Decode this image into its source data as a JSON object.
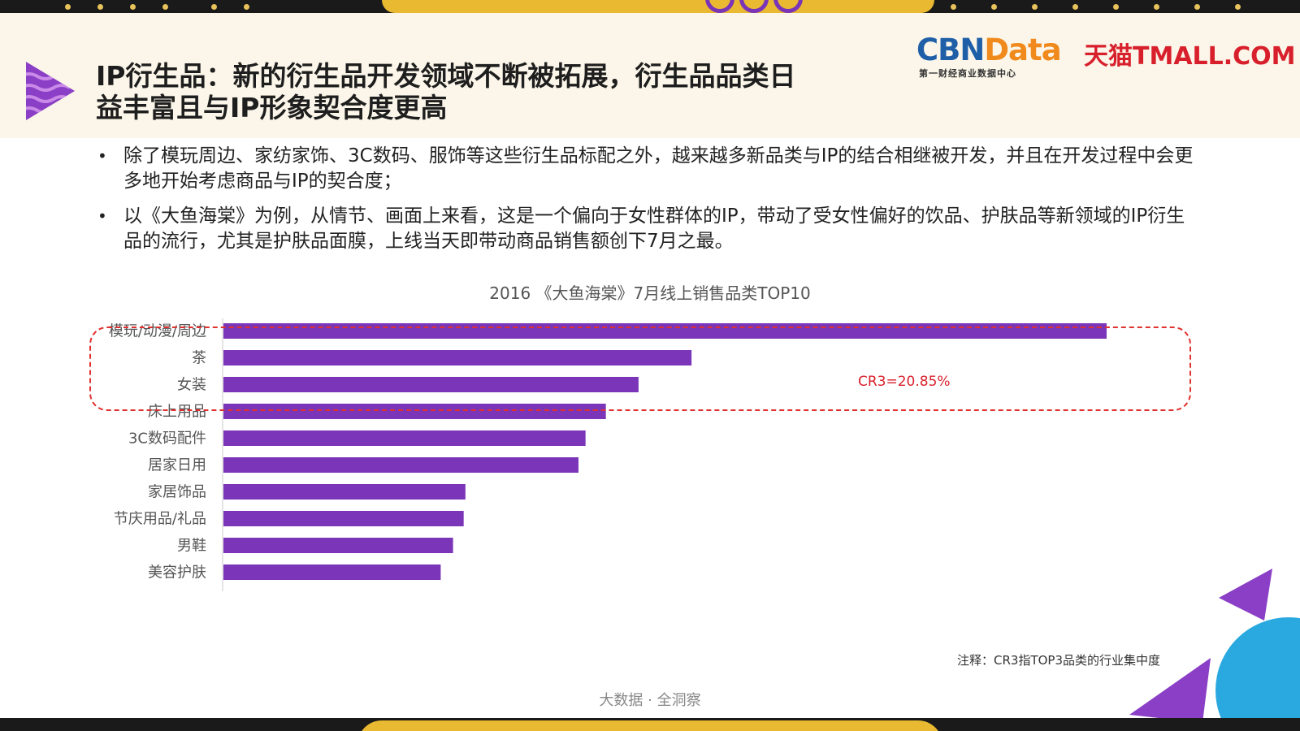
{
  "slide": {
    "title_line1": "IP衍生品：新的衍生品开发领域不断被拓展，衍生品品类日",
    "title_line2": "益丰富且与IP形象契合度更高",
    "logo_cbn_main": "CBN",
    "logo_cbn_data": "Data",
    "logo_cbn_sub": "第一财经商业数据中心",
    "logo_tmall": "天猫TMALL.COM",
    "bullets": [
      "除了模玩周边、家纺家饰、3C数码、服饰等这些衍生品标配之外，越来越多新品类与IP的结合相继被开发，并且在开发过程中会更多地开始考虑商品与IP的契合度；",
      "以《大鱼海棠》为例，从情节、画面上来看，这是一个偏向于女性群体的IP，带动了受女性偏好的饮品、护肤品等新领域的IP衍生品的流行，尤其是护肤品面膜，上线当天即带动商品销售额创下7月之最。"
    ],
    "bullet_marker": "•",
    "cr3_label": "CR3=20.85%",
    "note": "注释：CR3指TOP3品类的行业集中度",
    "footer": "大数据 · 全洞察"
  },
  "chart_data": {
    "type": "bar",
    "orientation": "horizontal",
    "title": "2016 《大鱼海棠》7月线上销售品类TOP10",
    "categories": [
      "模玩/动漫/周边",
      "茶",
      "女装",
      "床上用品",
      "3C数码配件",
      "居家日用",
      "家居饰品",
      "节庆用品/礼品",
      "男鞋",
      "美容护肤"
    ],
    "values": [
      100,
      53,
      47,
      43.3,
      41,
      40.2,
      27.4,
      27.2,
      26,
      24.6
    ],
    "xlim": [
      0,
      100
    ],
    "bar_color": "#7b35b8",
    "highlight_color": "#e0302f",
    "grid": false,
    "legend": "none"
  },
  "colors": {
    "accent_purple": "#7b35b8",
    "gold": "#e8b931",
    "header_bg": "#fbf6e9",
    "cbn_blue": "#1f5fa8",
    "cbn_orange": "#f08a1c",
    "tmall_red": "#d8202c"
  }
}
